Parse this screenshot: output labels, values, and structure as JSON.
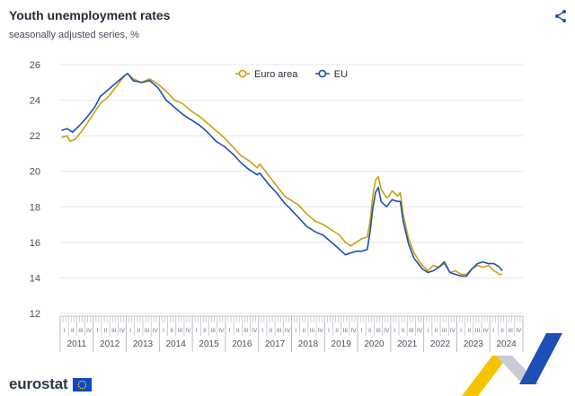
{
  "header": {
    "title": "Youth unemployment rates",
    "subtitle": "seasonally adjusted series, %"
  },
  "icons": {
    "share": "share-icon",
    "logo": "eu-flag-icon"
  },
  "brand": {
    "name": "eurostat"
  },
  "colors": {
    "euro_area": "#c8a20d",
    "eu": "#1e4fb5",
    "grid": "#e3e5ea",
    "axis_text": "#4a4f5a"
  },
  "chart_data": {
    "type": "line",
    "title": "Youth unemployment rates",
    "subtitle": "seasonally adjusted series, %",
    "xlabel": "",
    "ylabel": "",
    "ylim": [
      12,
      26
    ],
    "yticks": [
      12,
      14,
      16,
      18,
      20,
      22,
      24,
      26
    ],
    "grid": true,
    "legend_position": "top-center",
    "x_start": "2011-01",
    "x_end": "2024-05",
    "year_labels": [
      "2011",
      "2012",
      "2013",
      "2014",
      "2015",
      "2016",
      "2017",
      "2018",
      "2019",
      "2020",
      "2021",
      "2022",
      "2023",
      "2024"
    ],
    "quarter_labels": [
      "I",
      "II",
      "III",
      "IV"
    ],
    "series": [
      {
        "name": "Euro area",
        "color": "#c8a20d",
        "anchors": [
          [
            "2011-01",
            21.9
          ],
          [
            "2011-03",
            22.0
          ],
          [
            "2011-04",
            21.7
          ],
          [
            "2011-06",
            21.8
          ],
          [
            "2011-09",
            22.4
          ],
          [
            "2011-12",
            23.1
          ],
          [
            "2012-03",
            23.8
          ],
          [
            "2012-06",
            24.2
          ],
          [
            "2012-09",
            24.8
          ],
          [
            "2012-12",
            25.4
          ],
          [
            "2013-01",
            25.5
          ],
          [
            "2013-03",
            25.2
          ],
          [
            "2013-06",
            25.0
          ],
          [
            "2013-09",
            25.2
          ],
          [
            "2013-12",
            24.9
          ],
          [
            "2014-03",
            24.5
          ],
          [
            "2014-06",
            24.0
          ],
          [
            "2014-09",
            23.8
          ],
          [
            "2014-12",
            23.4
          ],
          [
            "2015-03",
            23.1
          ],
          [
            "2015-06",
            22.7
          ],
          [
            "2015-09",
            22.3
          ],
          [
            "2015-12",
            21.9
          ],
          [
            "2016-03",
            21.4
          ],
          [
            "2016-06",
            20.9
          ],
          [
            "2016-09",
            20.6
          ],
          [
            "2016-12",
            20.2
          ],
          [
            "2017-01",
            20.4
          ],
          [
            "2017-04",
            19.8
          ],
          [
            "2017-07",
            19.2
          ],
          [
            "2017-10",
            18.6
          ],
          [
            "2017-12",
            18.4
          ],
          [
            "2018-03",
            18.1
          ],
          [
            "2018-06",
            17.6
          ],
          [
            "2018-09",
            17.2
          ],
          [
            "2018-12",
            17.0
          ],
          [
            "2019-03",
            16.7
          ],
          [
            "2019-06",
            16.4
          ],
          [
            "2019-08",
            16.0
          ],
          [
            "2019-10",
            15.8
          ],
          [
            "2019-12",
            16.0
          ],
          [
            "2020-02",
            16.2
          ],
          [
            "2020-04",
            16.3
          ],
          [
            "2020-05",
            17.2
          ],
          [
            "2020-06",
            18.6
          ],
          [
            "2020-07",
            19.5
          ],
          [
            "2020-08",
            19.7
          ],
          [
            "2020-09",
            19.0
          ],
          [
            "2020-11",
            18.5
          ],
          [
            "2020-12",
            18.6
          ],
          [
            "2021-01",
            18.9
          ],
          [
            "2021-03",
            18.6
          ],
          [
            "2021-04",
            18.8
          ],
          [
            "2021-05",
            17.6
          ],
          [
            "2021-07",
            16.2
          ],
          [
            "2021-09",
            15.4
          ],
          [
            "2021-11",
            14.9
          ],
          [
            "2021-12",
            14.7
          ],
          [
            "2022-02",
            14.4
          ],
          [
            "2022-04",
            14.7
          ],
          [
            "2022-06",
            14.6
          ],
          [
            "2022-08",
            14.8
          ],
          [
            "2022-10",
            14.3
          ],
          [
            "2022-12",
            14.4
          ],
          [
            "2023-02",
            14.2
          ],
          [
            "2023-04",
            14.2
          ],
          [
            "2023-06",
            14.5
          ],
          [
            "2023-08",
            14.7
          ],
          [
            "2023-10",
            14.6
          ],
          [
            "2023-12",
            14.7
          ],
          [
            "2024-02",
            14.4
          ],
          [
            "2024-04",
            14.2
          ],
          [
            "2024-05",
            14.2
          ]
        ]
      },
      {
        "name": "EU",
        "color": "#1e4fb5",
        "anchors": [
          [
            "2011-01",
            22.3
          ],
          [
            "2011-03",
            22.4
          ],
          [
            "2011-05",
            22.2
          ],
          [
            "2011-07",
            22.5
          ],
          [
            "2011-10",
            23.0
          ],
          [
            "2012-01",
            23.6
          ],
          [
            "2012-03",
            24.2
          ],
          [
            "2012-06",
            24.6
          ],
          [
            "2012-09",
            25.0
          ],
          [
            "2012-12",
            25.4
          ],
          [
            "2013-01",
            25.5
          ],
          [
            "2013-03",
            25.1
          ],
          [
            "2013-06",
            25.0
          ],
          [
            "2013-09",
            25.1
          ],
          [
            "2013-12",
            24.7
          ],
          [
            "2014-03",
            24.0
          ],
          [
            "2014-06",
            23.6
          ],
          [
            "2014-09",
            23.2
          ],
          [
            "2014-12",
            22.9
          ],
          [
            "2015-03",
            22.6
          ],
          [
            "2015-06",
            22.2
          ],
          [
            "2015-09",
            21.7
          ],
          [
            "2015-12",
            21.4
          ],
          [
            "2016-03",
            21.0
          ],
          [
            "2016-06",
            20.5
          ],
          [
            "2016-09",
            20.1
          ],
          [
            "2016-12",
            19.8
          ],
          [
            "2017-01",
            19.9
          ],
          [
            "2017-04",
            19.3
          ],
          [
            "2017-07",
            18.8
          ],
          [
            "2017-10",
            18.2
          ],
          [
            "2017-12",
            17.9
          ],
          [
            "2018-03",
            17.4
          ],
          [
            "2018-06",
            16.9
          ],
          [
            "2018-09",
            16.6
          ],
          [
            "2018-12",
            16.4
          ],
          [
            "2019-03",
            16.0
          ],
          [
            "2019-06",
            15.6
          ],
          [
            "2019-08",
            15.3
          ],
          [
            "2019-10",
            15.4
          ],
          [
            "2019-12",
            15.5
          ],
          [
            "2020-02",
            15.5
          ],
          [
            "2020-04",
            15.6
          ],
          [
            "2020-05",
            16.6
          ],
          [
            "2020-06",
            17.9
          ],
          [
            "2020-07",
            18.8
          ],
          [
            "2020-08",
            19.1
          ],
          [
            "2020-09",
            18.3
          ],
          [
            "2020-11",
            18.0
          ],
          [
            "2020-12",
            18.2
          ],
          [
            "2021-01",
            18.4
          ],
          [
            "2021-03",
            18.3
          ],
          [
            "2021-04",
            18.3
          ],
          [
            "2021-05",
            17.2
          ],
          [
            "2021-07",
            15.9
          ],
          [
            "2021-09",
            15.1
          ],
          [
            "2021-11",
            14.7
          ],
          [
            "2021-12",
            14.5
          ],
          [
            "2022-02",
            14.3
          ],
          [
            "2022-04",
            14.4
          ],
          [
            "2022-06",
            14.6
          ],
          [
            "2022-08",
            14.9
          ],
          [
            "2022-10",
            14.3
          ],
          [
            "2022-12",
            14.2
          ],
          [
            "2023-02",
            14.1
          ],
          [
            "2023-04",
            14.1
          ],
          [
            "2023-06",
            14.5
          ],
          [
            "2023-08",
            14.8
          ],
          [
            "2023-10",
            14.9
          ],
          [
            "2023-12",
            14.8
          ],
          [
            "2024-02",
            14.8
          ],
          [
            "2024-04",
            14.6
          ],
          [
            "2024-05",
            14.4
          ]
        ]
      }
    ]
  }
}
